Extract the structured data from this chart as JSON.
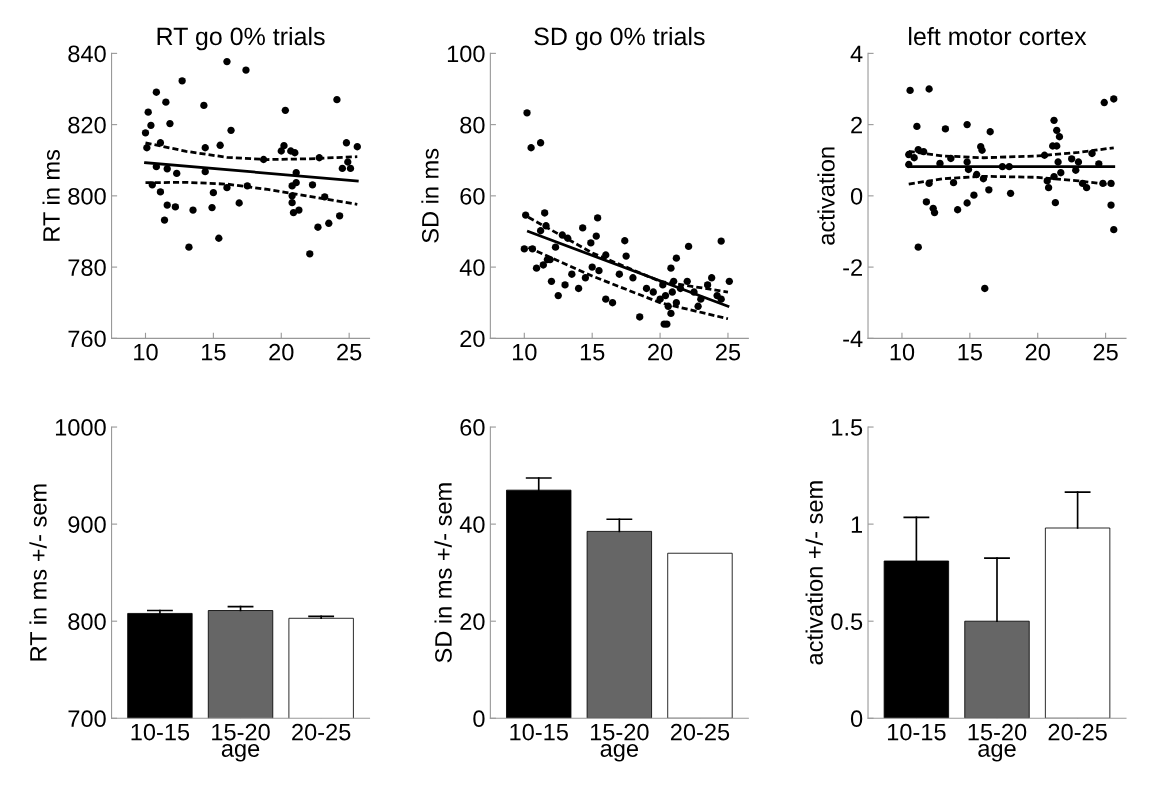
{
  "chart_data": [
    {
      "type": "scatter",
      "title": "RT go 0% trials",
      "ylabel": "RT in ms",
      "xlim": [
        7.5,
        26.5
      ],
      "xticks": [
        10,
        15,
        20,
        25
      ],
      "ylim": [
        760,
        840
      ],
      "yticks": [
        760,
        780,
        800,
        820,
        840
      ],
      "grid": false,
      "series": [
        {
          "type": "scatter",
          "marker": "circle",
          "color": "#000000",
          "x": [
            10.0,
            10.2,
            10.4,
            10.8,
            10.1,
            11.1,
            11.5,
            11.8,
            10.8,
            11.6,
            12.3,
            10.5,
            11.1,
            11.6,
            12.2,
            11.4,
            12.7,
            13.2,
            13.5,
            14.3,
            14.4,
            14.4,
            15.0,
            14.9,
            15.4,
            15.5,
            16.0,
            16.0,
            16.3,
            16.9,
            17.4,
            17.5,
            18.7,
            20.3,
            20.0,
            20.2,
            20.7,
            21.0,
            21.1,
            20.8,
            20.8,
            20.8,
            20.9,
            21.3,
            21.1,
            22.1,
            22.3,
            22.7,
            22.8,
            23.2,
            23.5,
            24.1,
            24.3,
            24.8,
            24.9,
            25.1,
            24.5,
            25.6
          ],
          "values": [
            817.7,
            823.5,
            819.8,
            829.1,
            813.5,
            814.9,
            826.3,
            820.3,
            808.2,
            807.6,
            806.3,
            803.1,
            801.1,
            797.4,
            796.9,
            793.2,
            832.3,
            785.6,
            796.0,
            825.4,
            813.5,
            806.8,
            800.9,
            796.7,
            788.1,
            814.2,
            802.3,
            837.7,
            818.4,
            798.0,
            835.3,
            802.8,
            810.2,
            824.0,
            812.6,
            814.1,
            812.6,
            812.1,
            806.5,
            802.8,
            800.0,
            798.1,
            795.3,
            796.0,
            803.7,
            783.7,
            803.1,
            791.2,
            810.7,
            799.7,
            792.3,
            827.0,
            794.4,
            814.9,
            809.5,
            807.7,
            807.7,
            813.8
          ]
        },
        {
          "type": "line",
          "color": "#000000",
          "line_style": "solid",
          "x": [
            10.0,
            25.6
          ],
          "values": [
            809.3,
            804.2
          ]
        },
        {
          "type": "line",
          "color": "#000000",
          "line_style": "dashed",
          "x": [
            10.0,
            13.0,
            16.0,
            19.0,
            22.0,
            25.6
          ],
          "values": [
            814.9,
            812.5,
            810.8,
            810.2,
            810.4,
            811.0
          ]
        },
        {
          "type": "line",
          "color": "#000000",
          "line_style": "dashed",
          "x": [
            10.0,
            13.0,
            16.0,
            19.0,
            22.0,
            25.6
          ],
          "values": [
            803.7,
            803.8,
            803.3,
            801.8,
            799.9,
            797.6
          ]
        }
      ]
    },
    {
      "type": "scatter",
      "title": "SD go 0% trials",
      "ylabel": "SD in ms",
      "xlim": [
        7.5,
        26.5
      ],
      "xticks": [
        10,
        15,
        20,
        25
      ],
      "ylim": [
        20,
        100
      ],
      "yticks": [
        20,
        40,
        60,
        80,
        100
      ],
      "grid": false,
      "series": [
        {
          "type": "scatter",
          "marker": "circle",
          "color": "#000000",
          "x": [
            10.2,
            10.5,
            11.2,
            10.1,
            11.5,
            11.2,
            11.6,
            10.0,
            10.6,
            12.3,
            12.8,
            13.2,
            14.3,
            15.4,
            15.3,
            14.9,
            16.0,
            17.4,
            17.5,
            20.8,
            21.2,
            22.1,
            24.5,
            11.7,
            11.9,
            11.4,
            10.9,
            12.0,
            12.5,
            13.0,
            13.5,
            14.0,
            14.5,
            15.0,
            15.5,
            16.0,
            16.5,
            17.0,
            18.0,
            18.5,
            19.0,
            19.5,
            20.0,
            20.2,
            20.3,
            20.5,
            20.4,
            20.6,
            20.8,
            20.9,
            21.0,
            21.2,
            22.0,
            22.5,
            23.0,
            23.5,
            23.8,
            24.2,
            24.5,
            25.1,
            21.5,
            22.8
          ],
          "values": [
            83.3,
            73.5,
            74.9,
            54.6,
            55.2,
            50.2,
            51.6,
            45.1,
            45.1,
            45.6,
            49.0,
            48.1,
            51.0,
            53.8,
            48.7,
            46.8,
            43.4,
            47.4,
            43.1,
            39.7,
            42.5,
            45.8,
            47.3,
            42.1,
            42.1,
            40.6,
            39.7,
            36,
            32,
            35,
            38,
            34,
            37,
            40,
            39,
            31,
            30,
            38,
            37,
            26,
            34,
            33,
            31,
            35,
            24,
            24,
            32,
            29,
            27,
            33,
            36,
            30,
            36,
            33,
            31,
            35,
            37,
            32,
            31,
            36,
            34,
            29
          ]
        },
        {
          "type": "line",
          "color": "#000000",
          "line_style": "solid",
          "x": [
            10.3,
            25.0
          ],
          "values": [
            50,
            29
          ]
        },
        {
          "type": "line",
          "color": "#000000",
          "line_style": "dashed",
          "x": [
            10.3,
            15.0,
            20.0,
            25.0
          ],
          "values": [
            54,
            44,
            36,
            33
          ]
        },
        {
          "type": "line",
          "color": "#000000",
          "line_style": "dashed",
          "x": [
            10.3,
            15.0,
            20.0,
            25.0
          ],
          "values": [
            45.5,
            37.5,
            30,
            25.5
          ]
        }
      ]
    },
    {
      "type": "scatter",
      "title": "left motor cortex",
      "ylabel": "activation",
      "xlim": [
        7.5,
        26.5
      ],
      "xticks": [
        10,
        15,
        20,
        25
      ],
      "ylim": [
        -4,
        4
      ],
      "yticks": [
        -4,
        -2,
        0,
        2,
        4
      ],
      "grid": false,
      "series": [
        {
          "type": "scatter",
          "marker": "circle",
          "color": "#000000",
          "x": [
            10.6,
            12.0,
            11.1,
            10.5,
            10.9,
            10.5,
            11.2,
            11.6,
            12.0,
            11.8,
            12.3,
            12.4,
            11.2,
            12.8,
            13.2,
            13.6,
            13.8,
            14.1,
            14.8,
            14.8,
            14.8,
            14.9,
            15.3,
            15.5,
            15.8,
            15.9,
            16.0,
            16.4,
            16.5,
            17.4,
            17.9,
            18.0,
            20.5,
            20.7,
            20.8,
            21.2,
            21.1,
            21.4,
            21.4,
            21.6,
            21.5,
            21.2,
            21.7,
            21.3,
            22.5,
            22.8,
            23.0,
            23.3,
            23.6,
            24.0,
            24.5,
            24.8,
            24.9,
            25.4,
            25.4,
            25.6,
            25.6,
            16.1
          ],
          "values": [
            2.96,
            3.0,
            1.95,
            1.16,
            1.07,
            0.88,
            1.3,
            1.24,
            0.35,
            -0.17,
            -0.35,
            -0.47,
            -1.44,
            0.91,
            1.88,
            1.05,
            0.37,
            -0.39,
            -0.2,
            2.0,
            0.95,
            0.74,
            0.02,
            0.6,
            1.38,
            1.28,
            0.48,
            0.17,
            1.8,
            0.82,
            0.82,
            0.07,
            1.14,
            0.42,
            0.23,
            2.12,
            1.4,
            1.84,
            1.4,
            1.66,
            0.95,
            0.54,
            0.65,
            -0.19,
            1.04,
            0.72,
            0.95,
            0.35,
            0.23,
            1.19,
            0.9,
            0.35,
            2.62,
            0.35,
            -0.26,
            2.72,
            -0.95,
            -2.6
          ]
        },
        {
          "type": "line",
          "color": "#000000",
          "line_style": "solid",
          "x": [
            10.5,
            25.6
          ],
          "values": [
            0.82,
            0.82
          ]
        },
        {
          "type": "line",
          "color": "#000000",
          "line_style": "dashed",
          "x": [
            10.5,
            13.0,
            16.0,
            20.0,
            23.0,
            25.6
          ],
          "values": [
            1.25,
            1.12,
            1.07,
            1.12,
            1.22,
            1.35
          ]
        },
        {
          "type": "line",
          "color": "#000000",
          "line_style": "dashed",
          "x": [
            10.5,
            13.0,
            16.0,
            20.0,
            23.0,
            25.6
          ],
          "values": [
            0.33,
            0.48,
            0.55,
            0.52,
            0.42,
            0.3
          ]
        }
      ]
    },
    {
      "type": "bar",
      "xlabel": "age",
      "ylabel": "RT in ms +/- sem",
      "categories": [
        "10-15",
        "15-20",
        "20-25"
      ],
      "values": [
        808,
        811,
        803
      ],
      "colors": [
        "#000000",
        "#666666",
        "#ffffff"
      ],
      "errors": [
        [
          808,
          811
        ],
        [
          811,
          815
        ],
        [
          803,
          805
        ]
      ],
      "ylim": [
        700,
        1000
      ],
      "yticks": [
        700,
        800,
        900,
        1000
      ],
      "grid": false
    },
    {
      "type": "bar",
      "xlabel": "age",
      "ylabel": "SD in ms +/- sem",
      "categories": [
        "10-15",
        "15-20",
        "20-25"
      ],
      "values": [
        47,
        38.5,
        34
      ],
      "colors": [
        "#000000",
        "#666666",
        "#ffffff"
      ],
      "errors": [
        [
          47,
          49.5
        ],
        [
          38.5,
          41
        ],
        null
      ],
      "ylim": [
        0,
        60
      ],
      "yticks": [
        0,
        20,
        40,
        60
      ],
      "grid": false
    },
    {
      "type": "bar",
      "xlabel": "age",
      "ylabel": "activation +/- sem",
      "categories": [
        "10-15",
        "15-20",
        "20-25"
      ],
      "values": [
        0.81,
        0.5,
        0.98
      ],
      "colors": [
        "#000000",
        "#666666",
        "#ffffff"
      ],
      "errors": [
        [
          0.81,
          1.035
        ],
        [
          0.5,
          0.825
        ],
        [
          0.98,
          1.165
        ]
      ],
      "ylim": [
        0,
        1.5
      ],
      "yticks": [
        0,
        0.5,
        1,
        {
          "value": 1.5,
          "label": "1.5"
        }
      ],
      "grid": false
    }
  ]
}
